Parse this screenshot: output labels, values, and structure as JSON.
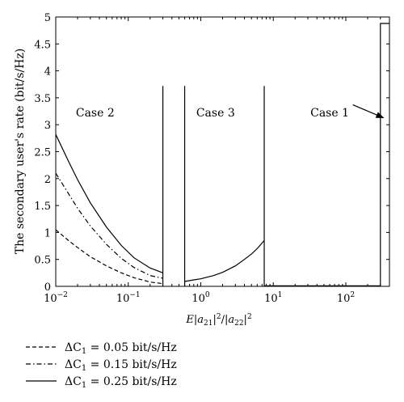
{
  "chart_data": {
    "type": "line",
    "xscale": "log",
    "xlim": [
      0.01,
      400
    ],
    "ylim": [
      0,
      5
    ],
    "grid": false,
    "legend_placement": "below-plot",
    "xlabel": "E|a21|²/|a22|²",
    "ylabel": "The secondary user's rate (bit/s/Hz)",
    "x_ticks": [
      {
        "value": 0.01,
        "base": "10",
        "exp": "−2"
      },
      {
        "value": 0.1,
        "base": "10",
        "exp": "−1"
      },
      {
        "value": 1,
        "base": "10",
        "exp": "0"
      },
      {
        "value": 10,
        "base": "10",
        "exp": "1"
      },
      {
        "value": 100,
        "base": "10",
        "exp": "2"
      }
    ],
    "y_ticks": [
      "0",
      "0.5",
      "1",
      "1.5",
      "2",
      "2.5",
      "3",
      "3.5",
      "4",
      "4.5",
      "5"
    ],
    "annotations": [
      {
        "text": "Case 2",
        "x": 0.035,
        "y": 3.15
      },
      {
        "text": "Case 3",
        "x": 1.6,
        "y": 3.15
      },
      {
        "text": "Case 1",
        "x": 60,
        "y": 3.15
      }
    ],
    "arrow": {
      "from": [
        125,
        3.25
      ],
      "to": [
        330,
        3.25
      ]
    },
    "region_boundaries": [
      {
        "x": 0.3,
        "y": [
          0,
          3.72
        ]
      },
      {
        "x": 0.6,
        "y": [
          0,
          3.72
        ]
      },
      {
        "x": 7.5,
        "y": [
          0,
          3.72
        ]
      }
    ],
    "series": [
      {
        "name": "ΔC1 = 0.05 bit/s/Hz",
        "legend_label": {
          "prefix": "ΔC",
          "sub": "1",
          "value": "= 0.05 bit/s/Hz"
        },
        "line_style": "dashed",
        "segments": [
          {
            "x": [
              0.01,
              0.015,
              0.02,
              0.03,
              0.05,
              0.08,
              0.12,
              0.2,
              0.3
            ],
            "y": [
              1.05,
              0.85,
              0.72,
              0.55,
              0.38,
              0.25,
              0.16,
              0.08,
              0.05
            ]
          }
        ]
      },
      {
        "name": "ΔC1 = 0.15 bit/s/Hz",
        "legend_label": {
          "prefix": "ΔC",
          "sub": "1",
          "value": "= 0.15 bit/s/Hz"
        },
        "line_style": "dash-dot",
        "segments": [
          {
            "x": [
              0.01,
              0.015,
              0.02,
              0.03,
              0.05,
              0.08,
              0.12,
              0.2,
              0.3
            ],
            "y": [
              2.1,
              1.72,
              1.45,
              1.12,
              0.78,
              0.52,
              0.35,
              0.2,
              0.15
            ]
          }
        ]
      },
      {
        "name": "ΔC1 = 0.25 bit/s/Hz",
        "legend_label": {
          "prefix": "ΔC",
          "sub": "1",
          "value": "= 0.25 bit/s/Hz"
        },
        "line_style": "solid",
        "segments": [
          {
            "x": [
              0.01,
              0.015,
              0.02,
              0.03,
              0.05,
              0.08,
              0.12,
              0.2,
              0.3
            ],
            "y": [
              2.82,
              2.32,
              1.98,
              1.55,
              1.1,
              0.76,
              0.53,
              0.34,
              0.25
            ]
          },
          {
            "x": [
              0.6,
              0.8,
              1,
              1.5,
              2,
              3,
              4,
              5,
              6,
              7.5
            ],
            "y": [
              0.09,
              0.12,
              0.14,
              0.2,
              0.26,
              0.38,
              0.5,
              0.6,
              0.7,
              0.85
            ]
          },
          {
            "x": [
              7.5,
              7.5,
              300,
              300,
              400
            ],
            "y": [
              0,
              0.01,
              0.01,
              4.88,
              4.88
            ]
          }
        ]
      }
    ]
  }
}
